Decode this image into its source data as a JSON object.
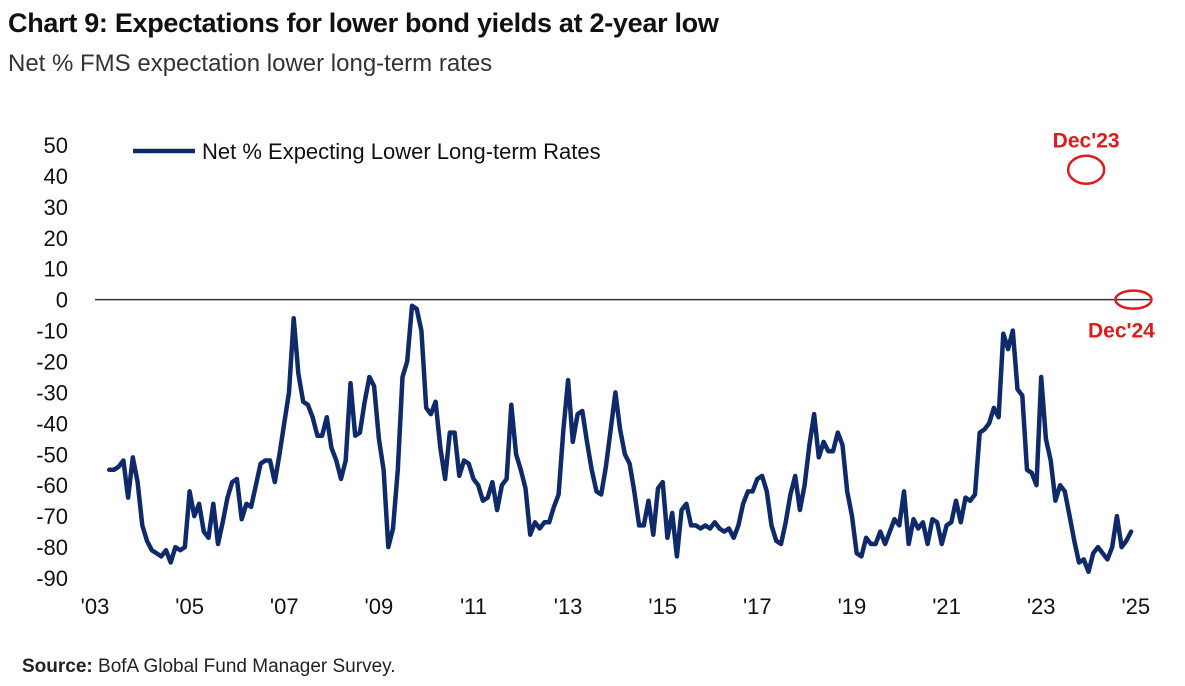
{
  "title": "Chart 9: Expectations for lower bond yields at 2-year low",
  "subtitle": "Net % FMS expectation lower long-term rates",
  "source_label": "Source:",
  "source_text": "BofA Global Fund Manager Survey.",
  "colors": {
    "series": "#0f2a6b",
    "annotation": "#e01b1b",
    "zero_line": "#333333"
  },
  "chart_data": {
    "type": "line",
    "title": "Chart 9: Expectations for lower bond yields at 2-year low",
    "subtitle": "Net % FMS expectation lower long-term rates",
    "xlabel": "",
    "ylabel": "",
    "xlim": [
      2003.0,
      2025.3
    ],
    "ylim": [
      -90,
      50
    ],
    "y_ticks": [
      50,
      40,
      30,
      20,
      10,
      0,
      -10,
      -20,
      -30,
      -40,
      -50,
      -60,
      -70,
      -80,
      -90
    ],
    "x_ticks": [
      {
        "value": 2003,
        "label": "'03"
      },
      {
        "value": 2005,
        "label": "'05"
      },
      {
        "value": 2007,
        "label": "'07"
      },
      {
        "value": 2009,
        "label": "'09"
      },
      {
        "value": 2011,
        "label": "'11"
      },
      {
        "value": 2013,
        "label": "'13"
      },
      {
        "value": 2015,
        "label": "'15"
      },
      {
        "value": 2017,
        "label": "'17"
      },
      {
        "value": 2019,
        "label": "'19"
      },
      {
        "value": 2021,
        "label": "'21"
      },
      {
        "value": 2023,
        "label": "'23"
      },
      {
        "value": 2025,
        "label": "'25"
      }
    ],
    "grid": false,
    "zero_line": true,
    "legend": {
      "position": "top-left",
      "entries": [
        "Net % Expecting Lower Long-term Rates"
      ]
    },
    "annotations": [
      {
        "label": "Dec'23",
        "x": 2023.95,
        "y": 42
      },
      {
        "label": "Dec'24",
        "x": 2024.95,
        "y": 0
      }
    ],
    "series": [
      {
        "name": "Net % Expecting Lower Long-term Rates",
        "points": [
          [
            2003.3,
            -55
          ],
          [
            2003.4,
            -55
          ],
          [
            2003.5,
            -54
          ],
          [
            2003.6,
            -52
          ],
          [
            2003.7,
            -64
          ],
          [
            2003.8,
            -51
          ],
          [
            2003.9,
            -59
          ],
          [
            2004.0,
            -73
          ],
          [
            2004.1,
            -78
          ],
          [
            2004.2,
            -81
          ],
          [
            2004.3,
            -82
          ],
          [
            2004.4,
            -83
          ],
          [
            2004.5,
            -81
          ],
          [
            2004.6,
            -85
          ],
          [
            2004.7,
            -80
          ],
          [
            2004.8,
            -81
          ],
          [
            2004.9,
            -80
          ],
          [
            2005.0,
            -62
          ],
          [
            2005.1,
            -70
          ],
          [
            2005.2,
            -66
          ],
          [
            2005.3,
            -75
          ],
          [
            2005.4,
            -77
          ],
          [
            2005.5,
            -66
          ],
          [
            2005.6,
            -79
          ],
          [
            2005.7,
            -72
          ],
          [
            2005.8,
            -64
          ],
          [
            2005.9,
            -59
          ],
          [
            2006.0,
            -58
          ],
          [
            2006.1,
            -71
          ],
          [
            2006.2,
            -66
          ],
          [
            2006.3,
            -67
          ],
          [
            2006.4,
            -60
          ],
          [
            2006.5,
            -53
          ],
          [
            2006.6,
            -52
          ],
          [
            2006.7,
            -52
          ],
          [
            2006.8,
            -59
          ],
          [
            2006.9,
            -50
          ],
          [
            2007.0,
            -40
          ],
          [
            2007.1,
            -30
          ],
          [
            2007.2,
            -6
          ],
          [
            2007.3,
            -24
          ],
          [
            2007.4,
            -33
          ],
          [
            2007.5,
            -34
          ],
          [
            2007.6,
            -38
          ],
          [
            2007.7,
            -44
          ],
          [
            2007.8,
            -44
          ],
          [
            2007.9,
            -38
          ],
          [
            2008.0,
            -48
          ],
          [
            2008.1,
            -52
          ],
          [
            2008.2,
            -58
          ],
          [
            2008.3,
            -52
          ],
          [
            2008.4,
            -27
          ],
          [
            2008.5,
            -44
          ],
          [
            2008.6,
            -43
          ],
          [
            2008.7,
            -33
          ],
          [
            2008.8,
            -25
          ],
          [
            2008.9,
            -28
          ],
          [
            2009.0,
            -45
          ],
          [
            2009.1,
            -55
          ],
          [
            2009.2,
            -80
          ],
          [
            2009.3,
            -74
          ],
          [
            2009.4,
            -55
          ],
          [
            2009.5,
            -25
          ],
          [
            2009.6,
            -20
          ],
          [
            2009.7,
            -2
          ],
          [
            2009.8,
            -3
          ],
          [
            2009.9,
            -10
          ],
          [
            2010.0,
            -35
          ],
          [
            2010.1,
            -37
          ],
          [
            2010.2,
            -33
          ],
          [
            2010.3,
            -48
          ],
          [
            2010.4,
            -58
          ],
          [
            2010.5,
            -43
          ],
          [
            2010.6,
            -43
          ],
          [
            2010.7,
            -57
          ],
          [
            2010.8,
            -52
          ],
          [
            2010.9,
            -53
          ],
          [
            2011.0,
            -58
          ],
          [
            2011.1,
            -60
          ],
          [
            2011.2,
            -65
          ],
          [
            2011.3,
            -64
          ],
          [
            2011.4,
            -59
          ],
          [
            2011.5,
            -68
          ],
          [
            2011.6,
            -60
          ],
          [
            2011.7,
            -58
          ],
          [
            2011.8,
            -34
          ],
          [
            2011.9,
            -50
          ],
          [
            2012.0,
            -55
          ],
          [
            2012.1,
            -61
          ],
          [
            2012.2,
            -76
          ],
          [
            2012.3,
            -72
          ],
          [
            2012.4,
            -74
          ],
          [
            2012.5,
            -72
          ],
          [
            2012.6,
            -72
          ],
          [
            2012.7,
            -67
          ],
          [
            2012.8,
            -63
          ],
          [
            2012.9,
            -42
          ],
          [
            2013.0,
            -26
          ],
          [
            2013.1,
            -46
          ],
          [
            2013.2,
            -37
          ],
          [
            2013.3,
            -36
          ],
          [
            2013.4,
            -46
          ],
          [
            2013.5,
            -55
          ],
          [
            2013.6,
            -62
          ],
          [
            2013.7,
            -63
          ],
          [
            2013.8,
            -54
          ],
          [
            2013.9,
            -42
          ],
          [
            2014.0,
            -30
          ],
          [
            2014.1,
            -42
          ],
          [
            2014.2,
            -50
          ],
          [
            2014.3,
            -53
          ],
          [
            2014.4,
            -62
          ],
          [
            2014.5,
            -73
          ],
          [
            2014.6,
            -73
          ],
          [
            2014.7,
            -65
          ],
          [
            2014.8,
            -76
          ],
          [
            2014.9,
            -61
          ],
          [
            2015.0,
            -59
          ],
          [
            2015.1,
            -77
          ],
          [
            2015.2,
            -69
          ],
          [
            2015.3,
            -83
          ],
          [
            2015.4,
            -68
          ],
          [
            2015.5,
            -66
          ],
          [
            2015.6,
            -73
          ],
          [
            2015.7,
            -73
          ],
          [
            2015.8,
            -74
          ],
          [
            2015.9,
            -73
          ],
          [
            2016.0,
            -74
          ],
          [
            2016.1,
            -72
          ],
          [
            2016.2,
            -74
          ],
          [
            2016.3,
            -75
          ],
          [
            2016.4,
            -74
          ],
          [
            2016.5,
            -77
          ],
          [
            2016.6,
            -73
          ],
          [
            2016.7,
            -66
          ],
          [
            2016.8,
            -62
          ],
          [
            2016.9,
            -62
          ],
          [
            2017.0,
            -58
          ],
          [
            2017.1,
            -57
          ],
          [
            2017.2,
            -62
          ],
          [
            2017.3,
            -73
          ],
          [
            2017.4,
            -78
          ],
          [
            2017.5,
            -79
          ],
          [
            2017.6,
            -72
          ],
          [
            2017.7,
            -63
          ],
          [
            2017.8,
            -57
          ],
          [
            2017.9,
            -68
          ],
          [
            2018.0,
            -60
          ],
          [
            2018.1,
            -47
          ],
          [
            2018.2,
            -37
          ],
          [
            2018.3,
            -51
          ],
          [
            2018.4,
            -46
          ],
          [
            2018.5,
            -49
          ],
          [
            2018.6,
            -49
          ],
          [
            2018.7,
            -43
          ],
          [
            2018.8,
            -47
          ],
          [
            2018.9,
            -62
          ],
          [
            2019.0,
            -70
          ],
          [
            2019.1,
            -82
          ],
          [
            2019.2,
            -83
          ],
          [
            2019.3,
            -77
          ],
          [
            2019.4,
            -79
          ],
          [
            2019.5,
            -79
          ],
          [
            2019.6,
            -75
          ],
          [
            2019.7,
            -79
          ],
          [
            2019.8,
            -75
          ],
          [
            2019.9,
            -71
          ],
          [
            2020.0,
            -73
          ],
          [
            2020.1,
            -62
          ],
          [
            2020.2,
            -79
          ],
          [
            2020.3,
            -71
          ],
          [
            2020.4,
            -74
          ],
          [
            2020.5,
            -72
          ],
          [
            2020.6,
            -79
          ],
          [
            2020.7,
            -71
          ],
          [
            2020.8,
            -72
          ],
          [
            2020.9,
            -79
          ],
          [
            2021.0,
            -73
          ],
          [
            2021.1,
            -72
          ],
          [
            2021.2,
            -65
          ],
          [
            2021.3,
            -72
          ],
          [
            2021.4,
            -64
          ],
          [
            2021.5,
            -65
          ],
          [
            2021.6,
            -63
          ],
          [
            2021.7,
            -43
          ],
          [
            2021.8,
            -42
          ],
          [
            2021.9,
            -40
          ],
          [
            2022.0,
            -35
          ],
          [
            2022.1,
            -38
          ],
          [
            2022.2,
            -11
          ],
          [
            2022.3,
            -16
          ],
          [
            2022.4,
            -10
          ],
          [
            2022.5,
            -29
          ],
          [
            2022.6,
            -31
          ],
          [
            2022.7,
            -55
          ],
          [
            2022.8,
            -56
          ],
          [
            2022.9,
            -60
          ],
          [
            2023.0,
            -25
          ],
          [
            2023.1,
            -45
          ],
          [
            2023.2,
            -52
          ],
          [
            2023.3,
            -65
          ],
          [
            2023.4,
            -60
          ],
          [
            2023.5,
            -62
          ],
          [
            2023.6,
            -70
          ],
          [
            2023.7,
            -78
          ],
          [
            2023.8,
            -85
          ],
          [
            2023.9,
            -84
          ],
          [
            2024.0,
            -88
          ],
          [
            2024.1,
            -82
          ],
          [
            2024.2,
            -80
          ],
          [
            2024.3,
            -82
          ],
          [
            2024.4,
            -84
          ],
          [
            2024.5,
            -80
          ],
          [
            2024.6,
            -70
          ],
          [
            2024.7,
            -80
          ],
          [
            2024.8,
            -78
          ],
          [
            2024.9,
            -75
          ]
        ]
      }
    ]
  }
}
